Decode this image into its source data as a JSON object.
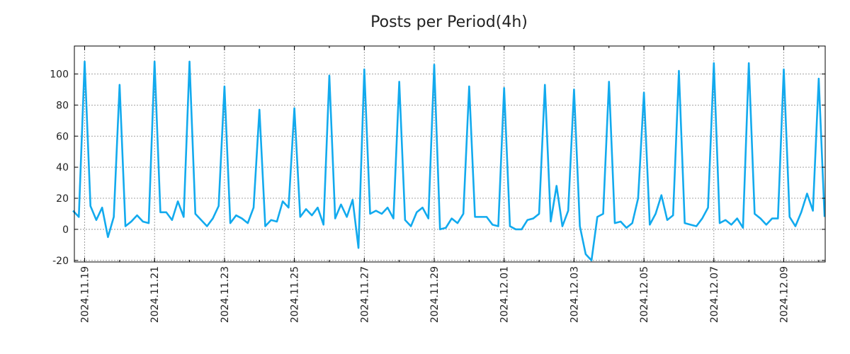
{
  "chart_data": {
    "type": "line",
    "title": "Posts per Period(4h)",
    "xlabel": "",
    "ylabel": "",
    "ylim": [
      -21,
      118
    ],
    "yticks": [
      -20,
      0,
      20,
      40,
      60,
      80,
      100
    ],
    "xticks": [
      "2024.11.19",
      "2024.11.21",
      "2024.11.23",
      "2024.11.25",
      "2024.11.27",
      "2024.11.29",
      "2024.12.01",
      "2024.12.03",
      "2024.12.05",
      "2024.12.07",
      "2024.12.09"
    ],
    "x_start": "2024.11.18 16:00",
    "period_hours": 4,
    "grid": true,
    "series": [
      {
        "name": "Posts",
        "color": "#12aaee",
        "values": [
          12,
          8,
          108,
          15,
          6,
          14,
          -5,
          8,
          93,
          2,
          5,
          9,
          5,
          4,
          108,
          11,
          11,
          6,
          18,
          8,
          108,
          10,
          6,
          2,
          7,
          15,
          92,
          4,
          9,
          7,
          4,
          14,
          77,
          2,
          6,
          5,
          18,
          14,
          78,
          8,
          13,
          9,
          14,
          3,
          99,
          7,
          16,
          8,
          19,
          -12,
          103,
          10,
          12,
          10,
          14,
          7,
          95,
          6,
          2,
          11,
          14,
          7,
          106,
          0,
          1,
          7,
          4,
          10,
          92,
          8,
          8,
          8,
          3,
          2,
          91,
          2,
          0,
          0,
          6,
          7,
          10,
          93,
          5,
          28,
          2,
          12,
          90,
          2,
          -16,
          -20,
          8,
          10,
          95,
          4,
          5,
          1,
          4,
          20,
          88,
          3,
          10,
          22,
          6,
          9,
          102,
          4,
          3,
          2,
          7,
          14,
          107,
          4,
          6,
          3,
          7,
          1,
          107,
          10,
          7,
          3,
          7,
          7,
          103,
          8,
          2,
          11,
          23,
          12,
          97,
          8
        ]
      }
    ]
  }
}
